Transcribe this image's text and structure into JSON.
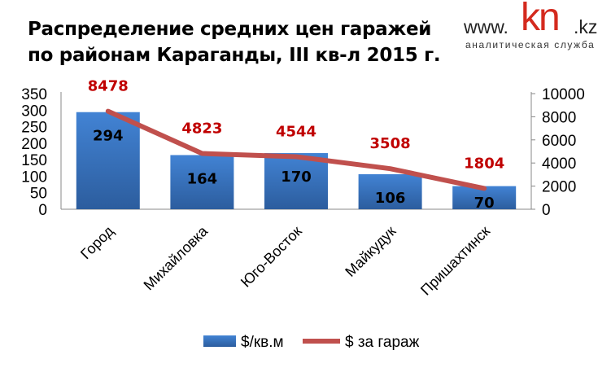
{
  "logo": {
    "www": "www.",
    "kn": "kn",
    "kz": ".kz",
    "subtitle": "аналитическая служба"
  },
  "chart_data": {
    "type": "bar+line",
    "title": [
      "Распределение средних цен гаражей",
      "по районам Караганды, III кв-л 2015 г."
    ],
    "categories": [
      "Город",
      "Михайловка",
      "Юго-Восток",
      "Майкудук",
      "Пришахтинск"
    ],
    "series": [
      {
        "name": "$/кв.м",
        "type": "bar",
        "axis": "left",
        "values": [
          294,
          164,
          170,
          106,
          70
        ],
        "color": "#3a78c8"
      },
      {
        "name": "$ за гараж",
        "type": "line",
        "axis": "right",
        "values": [
          8478,
          4823,
          4544,
          3508,
          1804
        ],
        "color": "#c0504d"
      }
    ],
    "left_axis": {
      "range": [
        0,
        350
      ],
      "ticks": [
        0,
        50,
        100,
        150,
        200,
        250,
        300,
        350
      ]
    },
    "right_axis": {
      "range": [
        0,
        10000
      ],
      "ticks": [
        0,
        2000,
        4000,
        6000,
        8000,
        10000
      ]
    },
    "legend_placement": "bottom",
    "label_color_line": "#c00000"
  }
}
